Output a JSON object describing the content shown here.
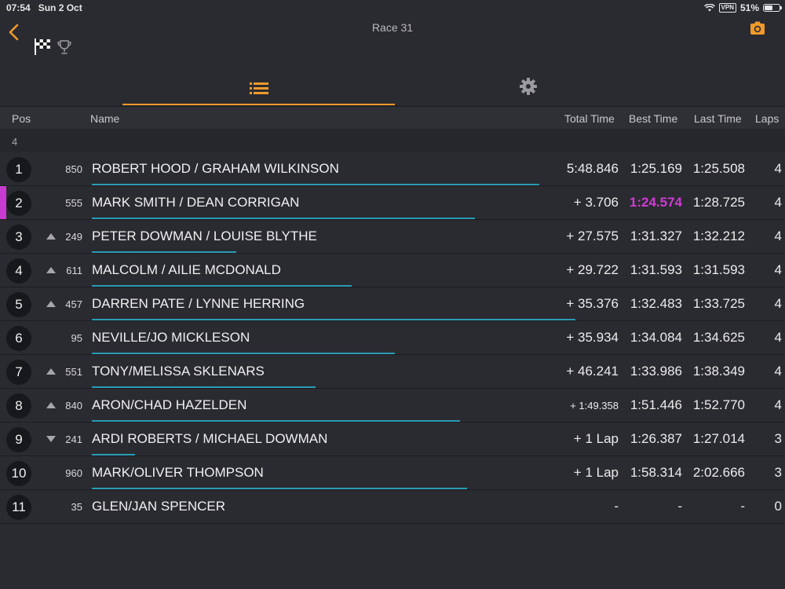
{
  "status": {
    "time": "07:54",
    "date": "Sun 2 Oct",
    "vpn": "VPN",
    "battery": "51%"
  },
  "header": {
    "title": "Race 31",
    "icons": [
      "back-chevron-icon",
      "checkered-flag-icon",
      "trophy-icon",
      "camera-icon"
    ]
  },
  "tabs": [
    {
      "icon": "list-icon",
      "active": true
    },
    {
      "icon": "gear-icon",
      "active": false
    }
  ],
  "columns": {
    "pos": "Pos",
    "name": "Name",
    "total": "Total Time",
    "best": "Best Time",
    "last": "Last Time",
    "laps": "Laps"
  },
  "group_label": "4",
  "accent_color": "#f09a2a",
  "fastest_color": "#d03ad6",
  "progress_color": "#2b9bb6",
  "rows": [
    {
      "pos": "1",
      "trend": "none",
      "num": "850",
      "name": "ROBERT HOOD / GRAHAM WILKINSON",
      "total": "5:48.846",
      "best": "1:25.169",
      "last": "1:25.508",
      "laps": "4",
      "progress": 0.62
    },
    {
      "pos": "2",
      "trend": "none",
      "num": "555",
      "name": "MARK SMITH / DEAN CORRIGAN",
      "total": "+ 3.706",
      "best": "1:24.574",
      "last": "1:28.725",
      "laps": "4",
      "progress": 0.53,
      "fastest": true,
      "highlight": true
    },
    {
      "pos": "3",
      "trend": "up",
      "num": "249",
      "name": "PETER DOWMAN / LOUISE BLYTHE",
      "total": "+ 27.575",
      "best": "1:31.327",
      "last": "1:32.212",
      "laps": "4",
      "progress": 0.2
    },
    {
      "pos": "4",
      "trend": "up",
      "num": "611",
      "name": "MALCOLM / AILIE MCDONALD",
      "total": "+ 29.722",
      "best": "1:31.593",
      "last": "1:31.593",
      "laps": "4",
      "progress": 0.36
    },
    {
      "pos": "5",
      "trend": "up",
      "num": "457",
      "name": "DARREN PATE / LYNNE HERRING",
      "total": "+ 35.376",
      "best": "1:32.483",
      "last": "1:33.725",
      "laps": "4",
      "progress": 0.67
    },
    {
      "pos": "6",
      "trend": "none",
      "num": "95",
      "name": "NEVILLE/JO MICKLESON",
      "total": "+ 35.934",
      "best": "1:34.084",
      "last": "1:34.625",
      "laps": "4",
      "progress": 0.42
    },
    {
      "pos": "7",
      "trend": "up",
      "num": "551",
      "name": "TONY/MELISSA SKLENARS",
      "total": "+ 46.241",
      "best": "1:33.986",
      "last": "1:38.349",
      "laps": "4",
      "progress": 0.31
    },
    {
      "pos": "8",
      "trend": "up",
      "num": "840",
      "name": "ARON/CHAD HAZELDEN",
      "total": "+ 1:49.358",
      "best": "1:51.446",
      "last": "1:52.770",
      "laps": "4",
      "progress": 0.51,
      "small_total": true
    },
    {
      "pos": "9",
      "trend": "down",
      "num": "241",
      "name": "ARDI ROBERTS / MICHAEL DOWMAN",
      "total": "+ 1 Lap",
      "best": "1:26.387",
      "last": "1:27.014",
      "laps": "3",
      "progress": 0.06
    },
    {
      "pos": "10",
      "trend": "none",
      "num": "960",
      "name": "MARK/OLIVER THOMPSON",
      "total": "+ 1 Lap",
      "best": "1:58.314",
      "last": "2:02.666",
      "laps": "3",
      "progress": 0.52
    },
    {
      "pos": "11",
      "trend": "none",
      "num": "35",
      "name": "GLEN/JAN SPENCER",
      "total": "-",
      "best": "-",
      "last": "-",
      "laps": "0",
      "progress": 0
    }
  ]
}
